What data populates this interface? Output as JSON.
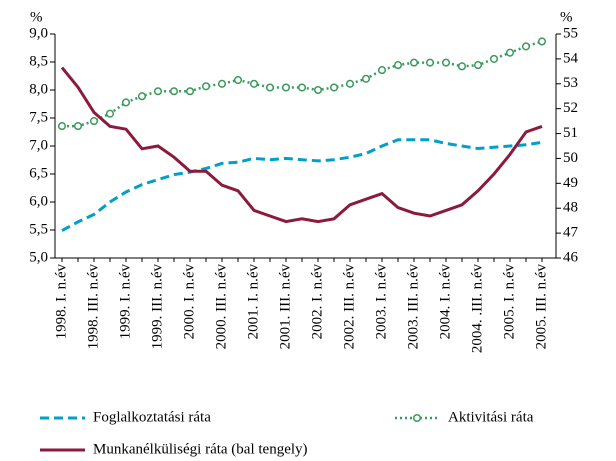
{
  "chart_data": {
    "type": "line",
    "ylabel": "%",
    "y2label": "%",
    "categories": [
      "1998. I. n.év",
      null,
      "1998. III. n.év",
      null,
      "1999. I. n.év",
      null,
      "1999. III. n.év",
      null,
      "2000. I. n.év",
      null,
      "2000. III. n.év",
      null,
      "2001. I. n.év",
      null,
      "2001. III. n.év",
      null,
      "2002. I. n.év",
      null,
      "2002. III. n.év",
      null,
      "2003. I. n.év",
      null,
      "2003. III. n.év",
      null,
      "2004. I. n.év",
      null,
      "2004. .III. n.év",
      null,
      "2005. I. n.év",
      null,
      "2005. III. n.év"
    ],
    "ylim": [
      5,
      9
    ],
    "yticks": [
      {
        "value": 5,
        "label": "5,0"
      },
      {
        "value": 5.5,
        "label": "5,5"
      },
      {
        "value": 6,
        "label": "6,0"
      },
      {
        "value": 6.5,
        "label": "6,5"
      },
      {
        "value": 7,
        "label": "7,0"
      },
      {
        "value": 7.5,
        "label": "7,5"
      },
      {
        "value": 8,
        "label": "8,0"
      },
      {
        "value": 8.5,
        "label": "8,5"
      },
      {
        "value": 9,
        "label": "9,0"
      }
    ],
    "y2lim": [
      46,
      55
    ],
    "y2ticks": [
      46,
      47,
      48,
      49,
      50,
      51,
      52,
      53,
      54,
      55
    ],
    "series": [
      {
        "name": "Foglalkoztatási ráta",
        "color": "#00a0c8",
        "axis": "y2",
        "style": "dashed",
        "values": [
          47.1,
          47.45,
          47.75,
          48.25,
          48.65,
          48.95,
          49.15,
          49.35,
          49.45,
          49.6,
          49.8,
          49.85,
          50.0,
          49.95,
          50.0,
          49.95,
          49.9,
          49.95,
          50.05,
          50.2,
          50.5,
          50.75,
          50.75,
          50.75,
          50.6,
          50.5,
          50.4,
          50.45,
          50.5,
          50.55,
          50.65
        ]
      },
      {
        "name": "Aktivitási ráta",
        "color": "#3a9a5c",
        "axis": "y2",
        "style": "dotted-markers",
        "values": [
          51.3,
          51.3,
          51.5,
          51.8,
          52.25,
          52.5,
          52.7,
          52.7,
          52.7,
          52.9,
          53.0,
          53.15,
          53.0,
          52.85,
          52.85,
          52.85,
          52.75,
          52.85,
          53.0,
          53.2,
          53.55,
          53.75,
          53.85,
          53.85,
          53.85,
          53.7,
          53.75,
          54.0,
          54.25,
          54.5,
          54.7
        ]
      },
      {
        "name": "Munkanélküliségi ráta (bal tengely)",
        "color": "#8b1a3c",
        "axis": "y",
        "style": "solid",
        "values": [
          8.4,
          8.05,
          7.6,
          7.35,
          7.3,
          6.95,
          7.0,
          6.8,
          6.55,
          6.55,
          6.3,
          6.2,
          5.85,
          5.75,
          5.65,
          5.7,
          5.65,
          5.7,
          5.95,
          6.05,
          6.15,
          5.9,
          5.8,
          5.75,
          5.85,
          5.95,
          6.2,
          6.5,
          6.85,
          7.25,
          7.35
        ]
      }
    ]
  }
}
